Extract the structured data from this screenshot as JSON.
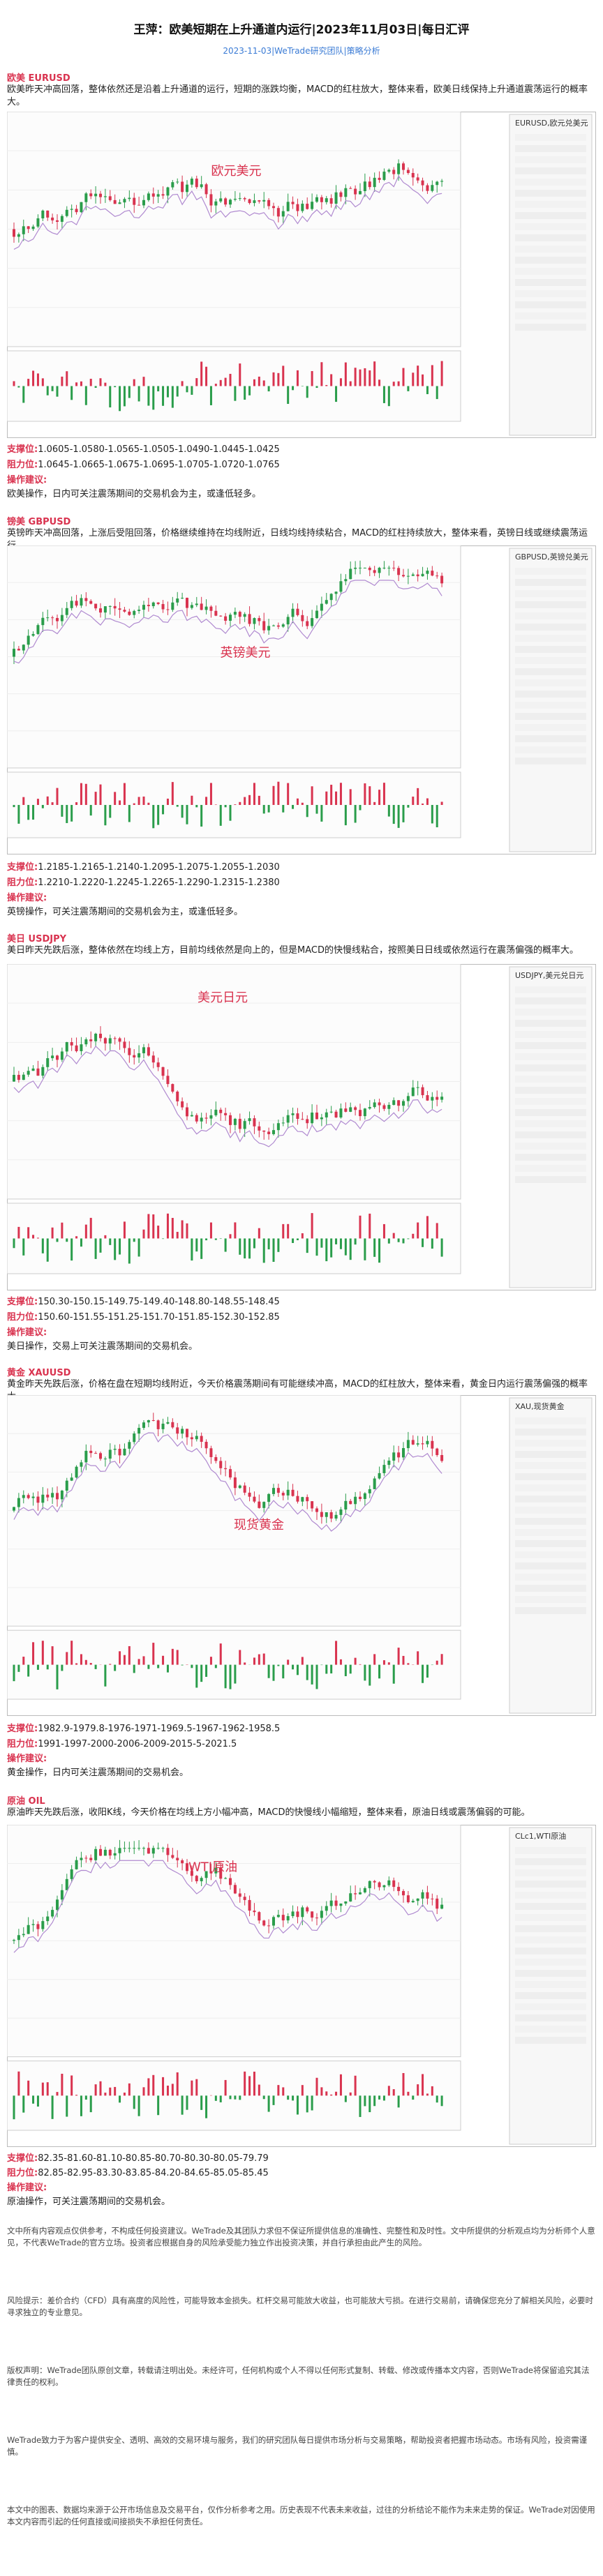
{
  "header": {
    "title": "王萍：欧美短期在上升通道内运行|2023年11月03日|每日汇评",
    "subtitle": "2023-11-03|WeTrade研究团队|策略分析"
  },
  "sections": [
    {
      "heading": "欧美 EURUSD",
      "paragraph": "欧美昨天冲高回落，整体依然还是沿着上升通道的运行，短期的涨跌均衡，MACD的红柱放大，整体来看，欧美日线保持上升通道震荡运行的概率大。",
      "chart_symbol": "EURUSD,欧元兑美元",
      "chart_label": "欧元美元",
      "support_label": "支撑位:",
      "support": "1.0605-1.0580-1.0565-1.0505-1.0490-1.0445-1.0425",
      "resistance_label": "阻力位:",
      "resistance": "1.0645-1.0665-1.0675-1.0695-1.0705-1.0720-1.0765",
      "advice_label": "操作建议:",
      "advice": "欧美操作，日内可关注震荡期间的交易机会为主，或逢低轻多。"
    },
    {
      "heading": "镑美 GBPUSD",
      "paragraph": "英镑昨天冲高回落，上涨后受阻回落，价格继续维持在均线附近，日线均线持续粘合，MACD的红柱持续放大，整体来看，英镑日线或继续震荡运行。",
      "chart_symbol": "GBPUSD,英镑兑美元",
      "chart_label": "英镑美元",
      "support_label": "支撑位:",
      "support": "1.2185-1.2165-1.2140-1.2095-1.2075-1.2055-1.2030",
      "resistance_label": "阻力位:",
      "resistance": "1.2210-1.2220-1.2245-1.2265-1.2290-1.2315-1.2380",
      "advice_label": "操作建议:",
      "advice": "英镑操作，可关注震荡期间的交易机会为主，或逢低轻多。"
    },
    {
      "heading": "美日 USDJPY",
      "paragraph": "美日昨天先跌后涨，整体依然在均线上方，目前均线依然是向上的，但是MACD的快慢线粘合，按照美日日线或依然运行在震荡偏强的概率大。",
      "chart_symbol": "USDJPY,美元兑日元",
      "chart_label": "美元日元",
      "support_label": "支撑位:",
      "support": "150.30-150.15-149.75-149.40-148.80-148.55-148.45",
      "resistance_label": "阻力位:",
      "resistance": "150.60-151.55-151.25-151.70-151.85-152.30-152.85",
      "advice_label": "操作建议:",
      "advice": "美日操作，交易上可关注震荡期间的交易机会。"
    },
    {
      "heading": "黄金 XAUUSD",
      "paragraph": "黄金昨天先跌后涨，价格在盘在短期均线附近，今天价格震荡期间有可能继续冲高，MACD的红柱放大，整体来看，黄金日内运行震荡偏强的概率大。",
      "chart_symbol": "XAU,现货黄金",
      "chart_label": "现货黄金",
      "support_label": "支撑位:",
      "support": "1982.9-1979.8-1976-1971-1969.5-1967-1962-1958.5",
      "resistance_label": "阻力位:",
      "resistance": "1991-1997-2000-2006-2009-2015-5-2021.5",
      "advice_label": "操作建议:",
      "advice": "黄金操作，日内可关注震荡期间的交易机会。"
    },
    {
      "heading": "原油 OIL",
      "paragraph": "原油昨天先跌后涨，收阳K线，今天价格在均线上方小幅冲高，MACD的快慢线小幅缩短，整体来看，原油日线或震荡偏弱的可能。",
      "chart_symbol": "CLc1,WTI原油",
      "chart_label": "WTI原油",
      "support_label": "支撑位:",
      "support": "82.35-81.60-81.10-80.85-80.70-80.30-80.05-79.79",
      "resistance_label": "阻力位:",
      "resistance": "82.85-82.95-83.30-83.85-84.20-84.65-85.05-85.45",
      "advice_label": "操作建议:",
      "advice": "原油操作，可关注震荡期间的交易机会。"
    }
  ],
  "disclaimer": [
    "文中所有内容观点仅供参考，不构成任何投资建议。WeTrade及其团队力求但不保证所提供信息的准确性、完整性和及时性。文中所提供的分析观点均为分析师个人意见，不代表WeTrade的官方立场。投资者应根据自身的风险承受能力独立作出投资决策，并自行承担由此产生的风险。",
    "风险提示：差价合约（CFD）具有高度的风险性，可能导致本金损失。杠杆交易可能放大收益，也可能放大亏损。在进行交易前，请确保您充分了解相关风险，必要时寻求独立的专业意见。",
    "版权声明：WeTrade团队原创文章，转载请注明出处。未经许可，任何机构或个人不得以任何形式复制、转载、修改或传播本文内容，否则WeTrade将保留追究其法律责任的权利。",
    "WeTrade致力于为客户提供安全、透明、高效的交易环境与服务，我们的研究团队每日提供市场分析与交易策略，帮助投资者把握市场动态。市场有风险，投资需谨慎。",
    "本文中的图表、数据均来源于公开市场信息及交易平台，仅作分析参考之用。历史表现不代表未来收益，过往的分析结论不能作为未来走势的保证。WeTrade对因使用本文内容而引起的任何直接或间接损失不承担任何责任。"
  ]
}
